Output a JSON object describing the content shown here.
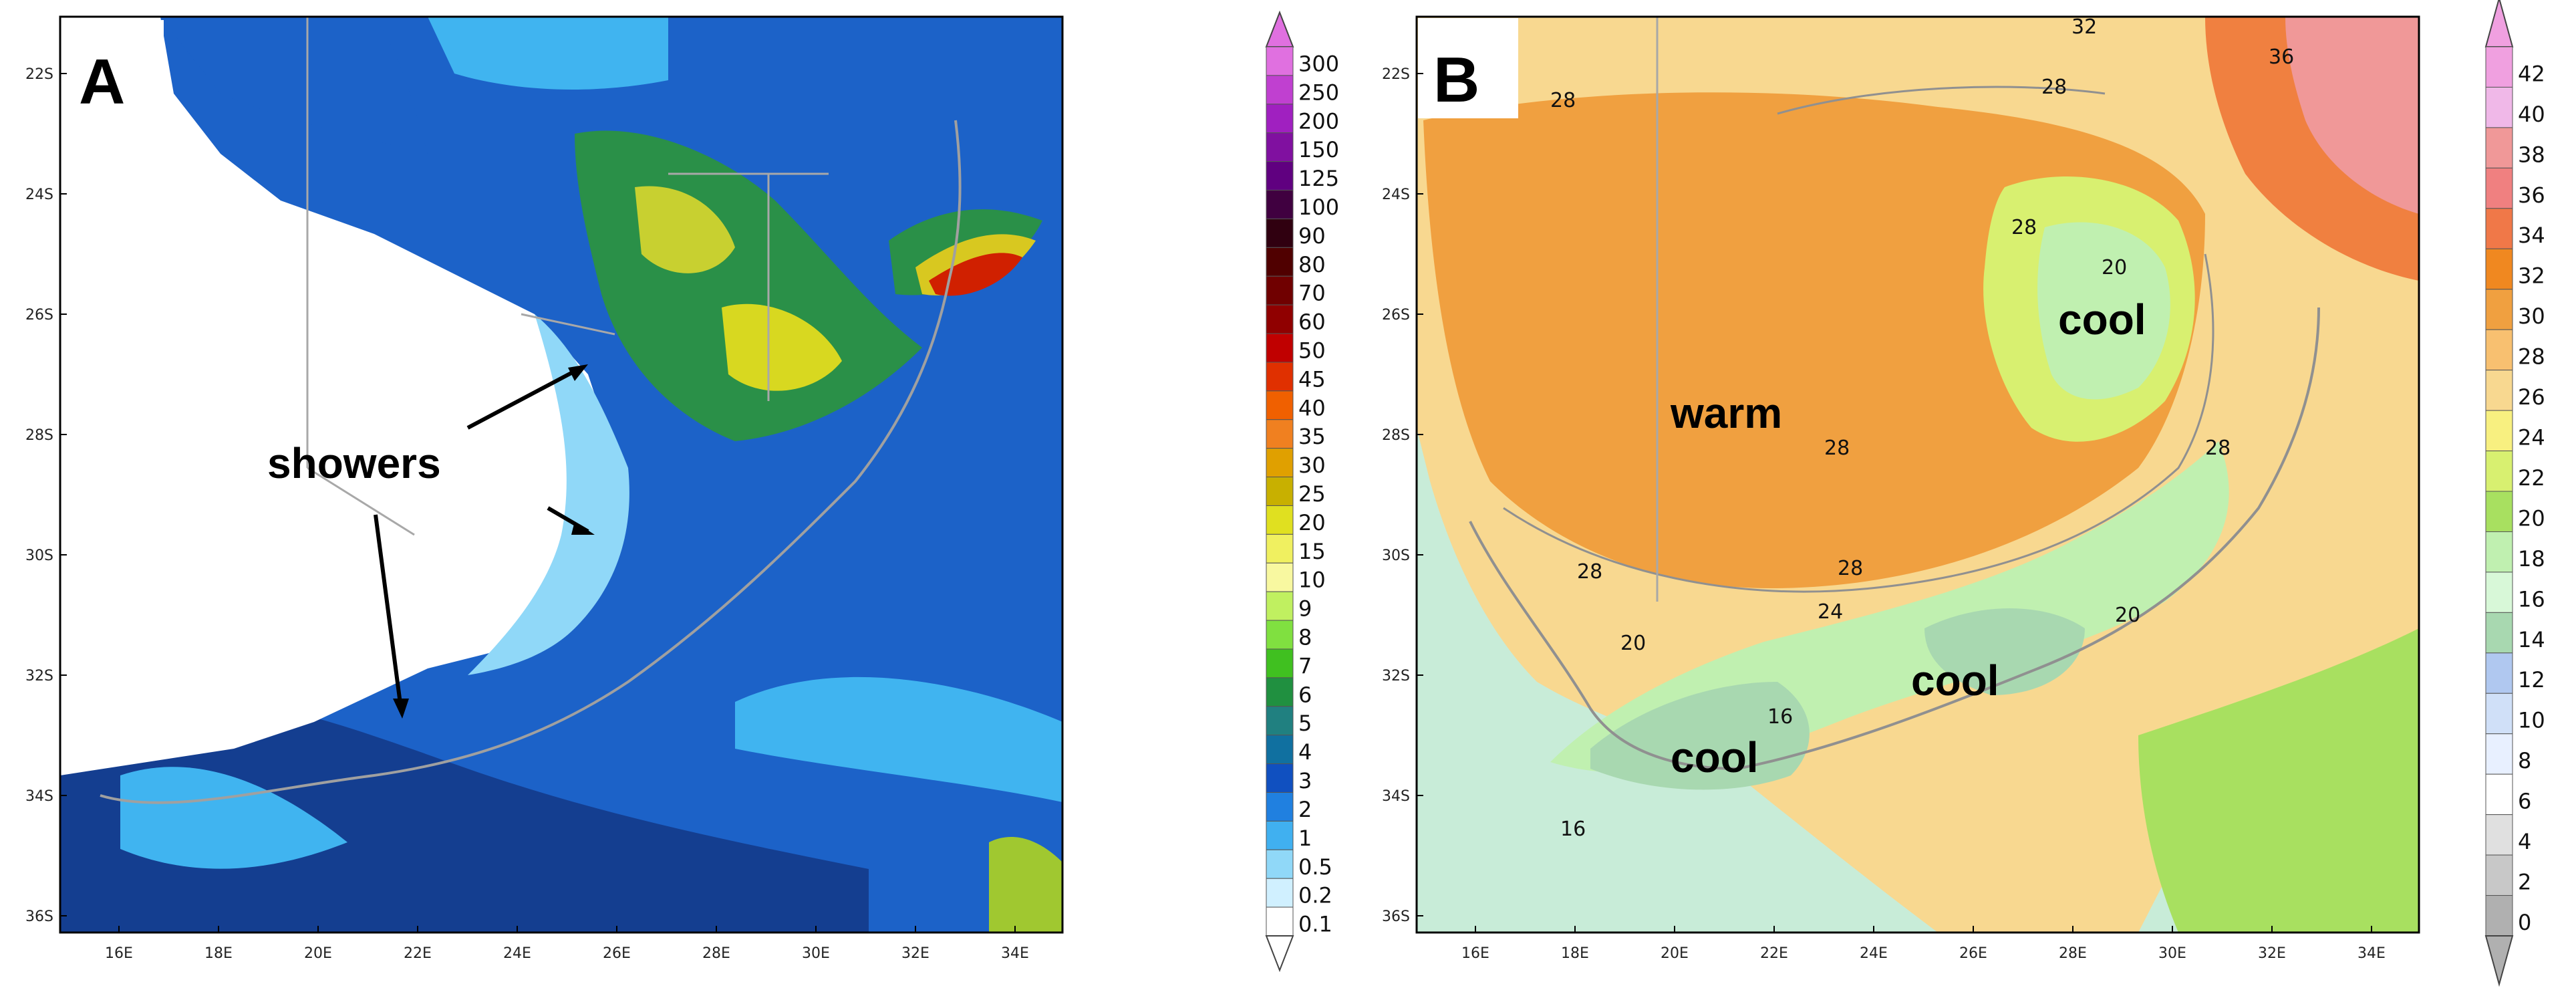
{
  "panel_a": {
    "letter": "A",
    "lat_ticks": [
      "22S",
      "24S",
      "26S",
      "28S",
      "30S",
      "32S",
      "34S",
      "36S"
    ],
    "lon_ticks": [
      "16E",
      "18E",
      "20E",
      "22E",
      "24E",
      "26E",
      "28E",
      "30E",
      "32E",
      "34E"
    ],
    "annotation": "showers",
    "colorbar": {
      "labels": [
        "300",
        "250",
        "200",
        "150",
        "125",
        "100",
        "90",
        "80",
        "70",
        "60",
        "50",
        "45",
        "40",
        "35",
        "30",
        "25",
        "20",
        "15",
        "10",
        "9",
        "8",
        "7",
        "6",
        "5",
        "4",
        "3",
        "2",
        "1",
        "0.5",
        "0.2",
        "0.1"
      ],
      "colors": [
        "#e070e0",
        "#c040d0",
        "#a020c0",
        "#8010a0",
        "#600080",
        "#400040",
        "#300010",
        "#500000",
        "#700000",
        "#900000",
        "#c00000",
        "#e03000",
        "#f06000",
        "#f08020",
        "#e0a000",
        "#c8b000",
        "#e0e020",
        "#f0f060",
        "#f8f8a0",
        "#c0f060",
        "#80e040",
        "#40c020",
        "#209040",
        "#208080",
        "#1070a0",
        "#1050c0",
        "#2080e0",
        "#40b0f0",
        "#90d8f8",
        "#d0f0ff",
        "#ffffff"
      ]
    }
  },
  "panel_b": {
    "letter": "B",
    "lat_ticks": [
      "22S",
      "24S",
      "26S",
      "28S",
      "30S",
      "32S",
      "34S",
      "36S"
    ],
    "lon_ticks": [
      "16E",
      "18E",
      "20E",
      "22E",
      "24E",
      "26E",
      "28E",
      "30E",
      "32E",
      "34E"
    ],
    "annotations": [
      "warm",
      "cool",
      "cool",
      "cool"
    ],
    "contour_labels": [
      "32",
      "36",
      "28",
      "28",
      "28",
      "20",
      "28",
      "28",
      "28",
      "28",
      "24",
      "20",
      "20",
      "16",
      "16"
    ],
    "colorbar": {
      "labels": [
        "42",
        "40",
        "38",
        "36",
        "34",
        "32",
        "30",
        "28",
        "26",
        "24",
        "22",
        "20",
        "18",
        "16",
        "14",
        "12",
        "10",
        "8",
        "6",
        "4",
        "2",
        "0"
      ],
      "colors": [
        "#f0a0e0",
        "#f0b8e8",
        "#f09898",
        "#f08080",
        "#f07848",
        "#f08820",
        "#f0a040",
        "#f8c070",
        "#f8d890",
        "#f8f080",
        "#d8f070",
        "#a8e060",
        "#c0f0b0",
        "#d8f8d8",
        "#a8d8b0",
        "#b0c8f0",
        "#d0e0f8",
        "#e8f0ff",
        "#ffffff",
        "#e0e0e0",
        "#c8c8c8",
        "#b0b0b0"
      ]
    }
  }
}
